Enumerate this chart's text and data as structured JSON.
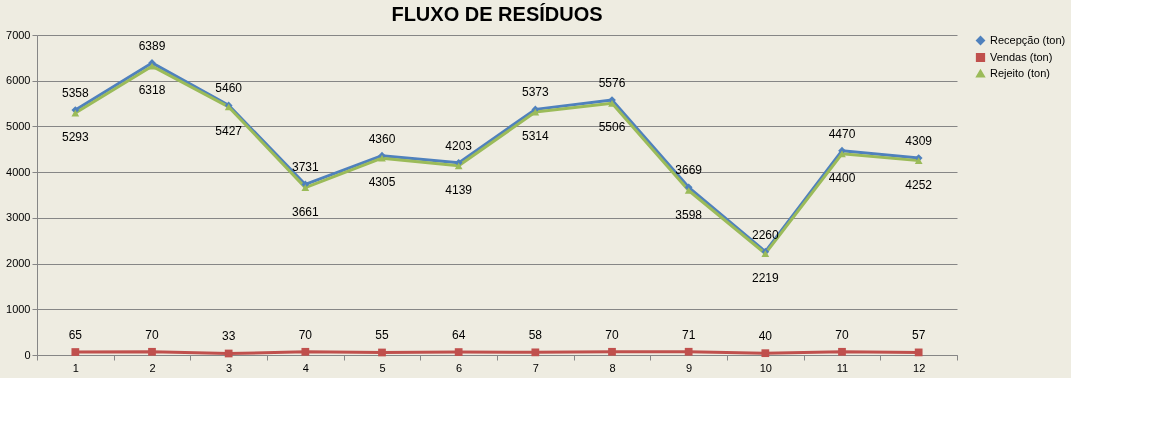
{
  "chart_data": {
    "type": "line",
    "title": "FLUXO DE RESÍDUOS",
    "categories": [
      "1",
      "2",
      "3",
      "4",
      "5",
      "6",
      "7",
      "8",
      "9",
      "10",
      "11",
      "12"
    ],
    "series": [
      {
        "name": "Recepção (ton)",
        "color": "#4f81bd",
        "marker": "diamond",
        "values": [
          5358,
          6389,
          5460,
          3731,
          4360,
          4203,
          5373,
          5576,
          3669,
          2260,
          4470,
          4309
        ]
      },
      {
        "name": "Vendas (ton)",
        "color": "#c0504d",
        "marker": "square",
        "values": [
          65,
          70,
          33,
          70,
          55,
          64,
          58,
          70,
          71,
          40,
          70,
          57
        ]
      },
      {
        "name": "Rejeito (ton)",
        "color": "#9bbb59",
        "marker": "triangle",
        "values": [
          5293,
          6318,
          5427,
          3661,
          4305,
          4139,
          5314,
          5506,
          3598,
          2219,
          4400,
          4252
        ]
      }
    ],
    "ylim": [
      0,
      7000
    ],
    "yticks": [
      0,
      1000,
      2000,
      3000,
      4000,
      5000,
      6000,
      7000
    ],
    "grid": "y",
    "legend": "right",
    "data_labels": true,
    "line_style": "solid"
  }
}
